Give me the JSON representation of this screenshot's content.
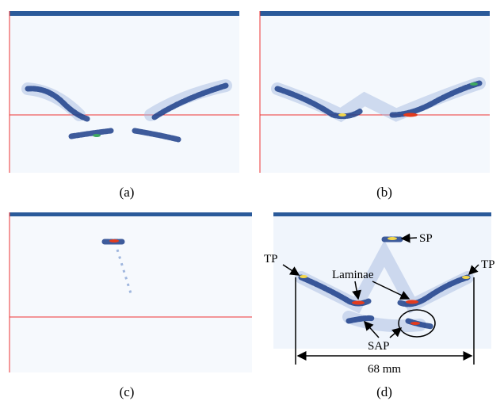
{
  "captions": [
    "(a)",
    "(b)",
    "(c)",
    "(d)"
  ],
  "annotations": {
    "sp": "SP",
    "tp_left": "TP",
    "tp_right": "TP",
    "laminae": "Laminae",
    "sap": "SAP",
    "width": "68 mm"
  }
}
